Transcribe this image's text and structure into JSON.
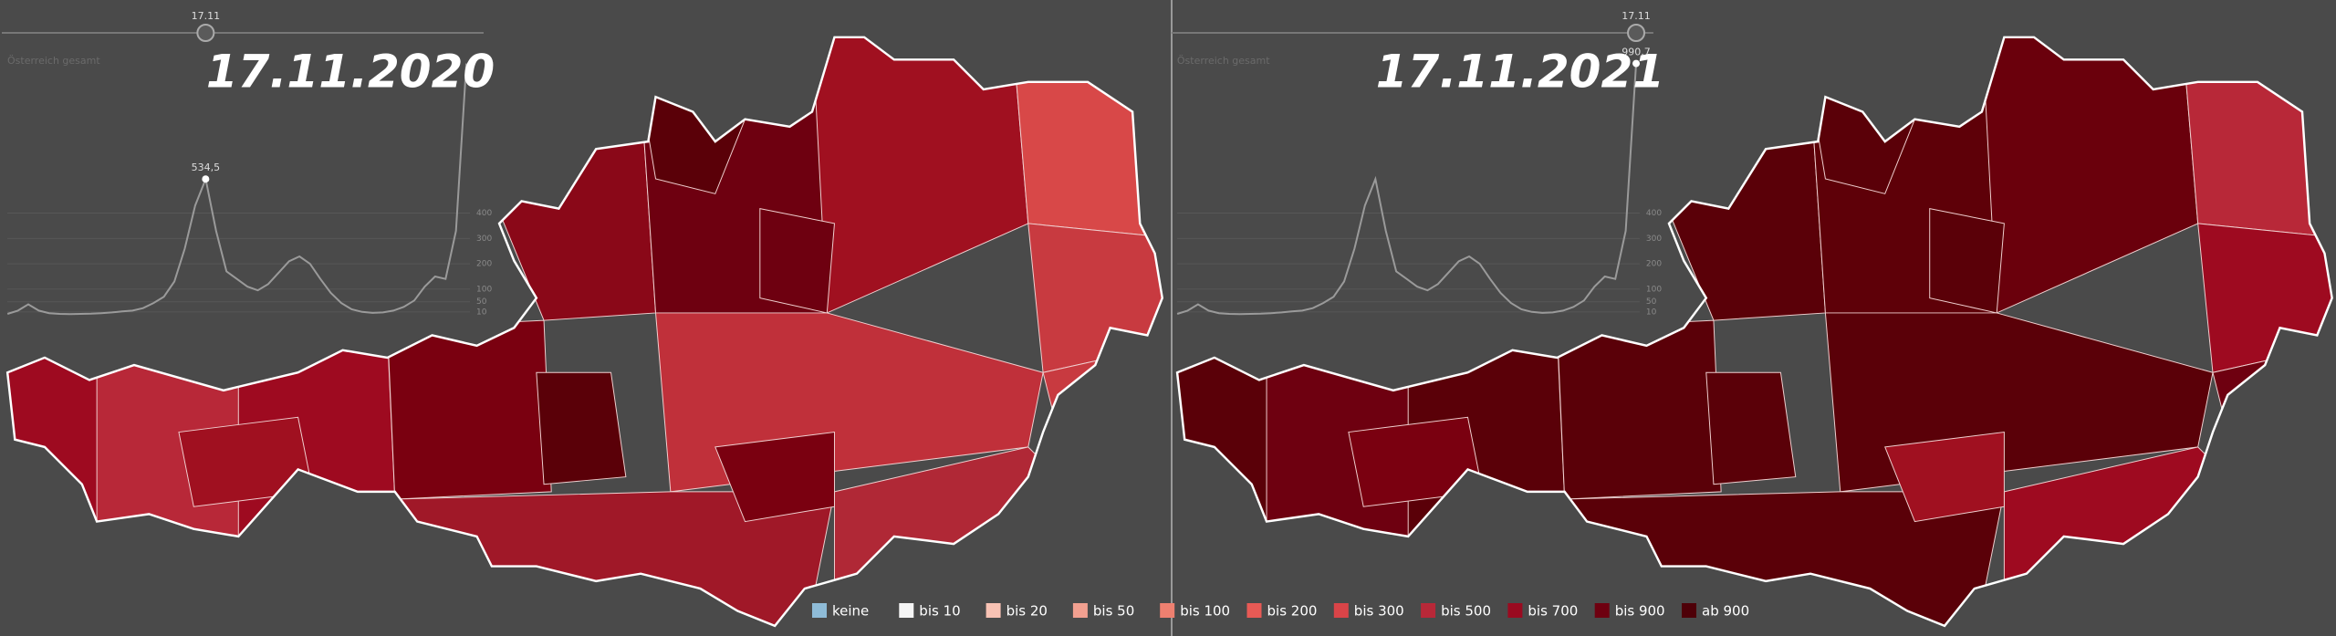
{
  "panels": [
    {
      "slider_label": "17.11",
      "region": "Österreich gesamt",
      "date": "17.11.2020",
      "marker_value": 534.5,
      "marker_label": "534,5"
    },
    {
      "slider_label": "17.11",
      "region": "Österreich gesamt",
      "date": "17.11.2021",
      "marker_value": 990.7,
      "marker_label": "990,7"
    }
  ],
  "timeline": {
    "color": "#9a9a9a",
    "values": [
      2,
      15,
      40,
      15,
      5,
      2,
      1,
      2,
      3,
      5,
      8,
      12,
      15,
      25,
      45,
      70,
      130,
      260,
      430,
      534.5,
      330,
      170,
      140,
      110,
      95,
      120,
      165,
      210,
      229,
      200,
      140,
      85,
      45,
      20,
      10,
      6,
      8,
      15,
      30,
      55,
      110,
      150,
      140,
      330,
      990.7
    ],
    "ylim": [
      0,
      1000
    ],
    "yticks": [
      400,
      300,
      200,
      100,
      50,
      10
    ]
  },
  "legend": {
    "items": [
      {
        "label": "keine",
        "color": "#8fbcd8"
      },
      {
        "label": "bis 10",
        "color": "#f5f5f5"
      },
      {
        "label": "bis 20",
        "color": "#f8c2b4"
      },
      {
        "label": "bis 50",
        "color": "#f2a090"
      },
      {
        "label": "bis 100",
        "color": "#ee8070"
      },
      {
        "label": "bis 200",
        "color": "#e85a55"
      },
      {
        "label": "bis 300",
        "color": "#d94448"
      },
      {
        "label": "bis 500",
        "color": "#b82838"
      },
      {
        "label": "bis 700",
        "color": "#9a0a20"
      },
      {
        "label": "bis 900",
        "color": "#6e0010"
      },
      {
        "label": "ab 900",
        "color": "#4e0008"
      }
    ]
  }
}
